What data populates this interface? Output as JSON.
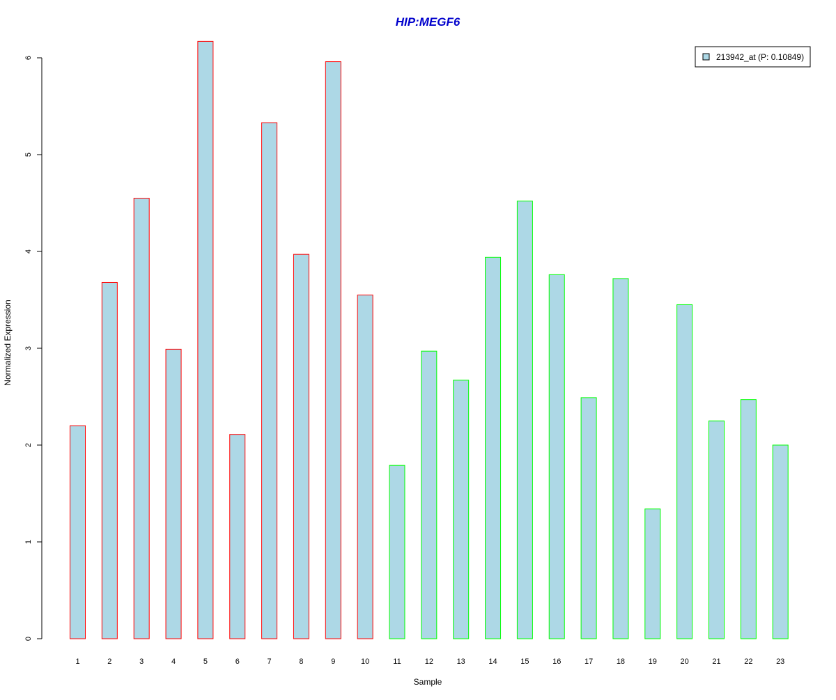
{
  "chart_data": {
    "type": "bar",
    "title": "HIP:MEGF6",
    "xlabel": "Sample",
    "ylabel": "Normalized Expression",
    "categories": [
      "1",
      "2",
      "3",
      "4",
      "5",
      "6",
      "7",
      "8",
      "9",
      "10",
      "11",
      "12",
      "13",
      "14",
      "15",
      "16",
      "17",
      "18",
      "19",
      "20",
      "21",
      "22",
      "23"
    ],
    "series": [
      {
        "name": "213942_at (P: 0.10849)",
        "values": [
          2.2,
          3.68,
          4.55,
          2.99,
          6.17,
          2.11,
          5.33,
          3.97,
          5.96,
          3.55,
          1.79,
          2.97,
          2.67,
          3.94,
          4.52,
          3.76,
          2.49,
          3.72,
          1.34,
          3.45,
          2.25,
          2.47,
          2.0
        ]
      }
    ],
    "group_of_bar": [
      1,
      1,
      1,
      1,
      1,
      1,
      1,
      1,
      1,
      1,
      2,
      2,
      2,
      2,
      2,
      2,
      2,
      2,
      2,
      2,
      2,
      2,
      2
    ],
    "ylim": [
      0,
      6
    ],
    "yticks": [
      0,
      1,
      2,
      3,
      4,
      5,
      6
    ],
    "grid": false,
    "legend_position": "top-right",
    "colors": {
      "title": "#0000cc",
      "bar_fill": "#add8e6",
      "group_1_border": "#ff0000",
      "group_2_border": "#00ff00",
      "axis": "#000000"
    }
  }
}
